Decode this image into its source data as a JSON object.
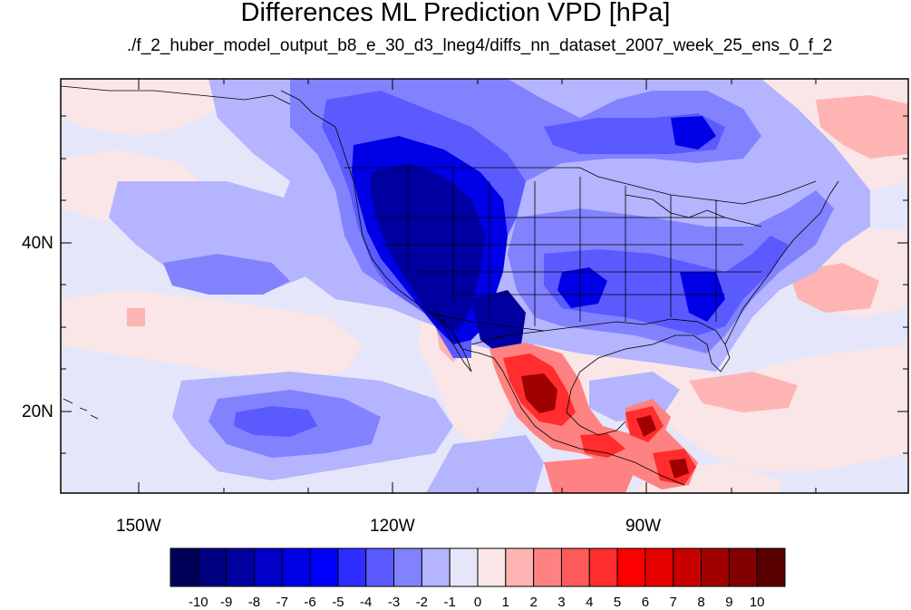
{
  "title": "Differences ML Prediction VPD [hPa]",
  "subtitle": "./f_2_huber_model_output_b8_e_30_d3_lneg4/diffs_nn_dataset_2007_week_25_ens_0_f_2",
  "lat_ticks": [
    "40N",
    "20N"
  ],
  "lon_ticks": [
    "150W",
    "120W",
    "90W"
  ],
  "colorbar": {
    "labels": [
      "-10",
      "-9",
      "-8",
      "-7",
      "-6",
      "-5",
      "-4",
      "-3",
      "-2",
      "-1",
      "0",
      "1",
      "2",
      "3",
      "4",
      "5",
      "6",
      "7",
      "8",
      "9",
      "10"
    ],
    "colors": [
      "#00005a",
      "#000082",
      "#0000a0",
      "#0000c8",
      "#0000e6",
      "#0000ff",
      "#2d2dff",
      "#5a5aff",
      "#8282ff",
      "#b4b4ff",
      "#e6e6fa",
      "#fae6e6",
      "#ffb4b4",
      "#ff8282",
      "#ff5a5a",
      "#ff2d2d",
      "#ff0000",
      "#e60000",
      "#c80000",
      "#a00000",
      "#820000",
      "#5a0000"
    ]
  },
  "colors": {
    "background": "#e6e6fa",
    "land_outline": "#000000"
  }
}
